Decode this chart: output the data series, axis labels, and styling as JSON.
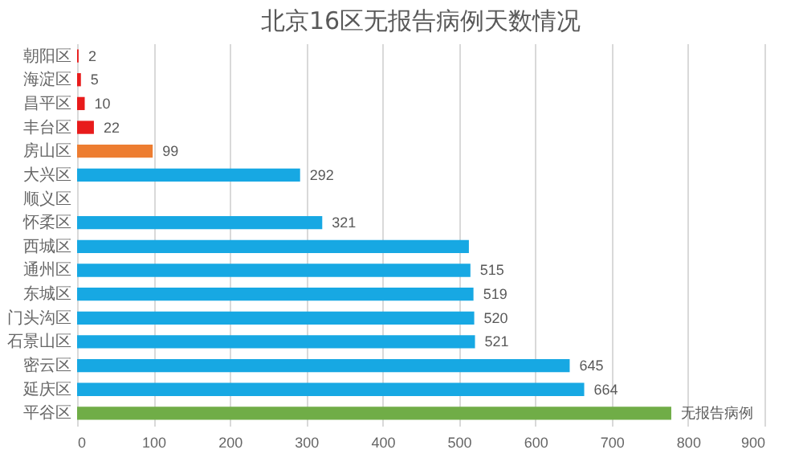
{
  "chart_data": {
    "type": "bar",
    "orientation": "horizontal",
    "title": "北京16区无报告病例天数情况",
    "categories": [
      "朝阳区",
      "海淀区",
      "昌平区",
      "丰台区",
      "房山区",
      "大兴区",
      "顺义区",
      "怀柔区",
      "西城区",
      "通州区",
      "东城区",
      "门头沟区",
      "石景山区",
      "密云区",
      "延庆区",
      "平谷区"
    ],
    "values": [
      2,
      5,
      10,
      22,
      99,
      292,
      null,
      321,
      513,
      515,
      519,
      520,
      521,
      645,
      664,
      778
    ],
    "value_labels": [
      "2",
      "5",
      "10",
      "22",
      "99",
      "292",
      null,
      "321",
      null,
      "515",
      "519",
      "520",
      "521",
      "645",
      "664",
      "无报告病例"
    ],
    "colors": [
      "#e81b1b",
      "#e81b1b",
      "#e81b1b",
      "#e81b1b",
      "#ed7d31",
      "#17a8e3",
      "#17a8e3",
      "#17a8e3",
      "#17a8e3",
      "#17a8e3",
      "#17a8e3",
      "#17a8e3",
      "#17a8e3",
      "#17a8e3",
      "#17a8e3",
      "#70ad47"
    ],
    "xlim": [
      0,
      900
    ],
    "xticks": [
      0,
      100,
      200,
      300,
      400,
      500,
      600,
      700,
      800,
      900
    ],
    "grid": "x"
  }
}
